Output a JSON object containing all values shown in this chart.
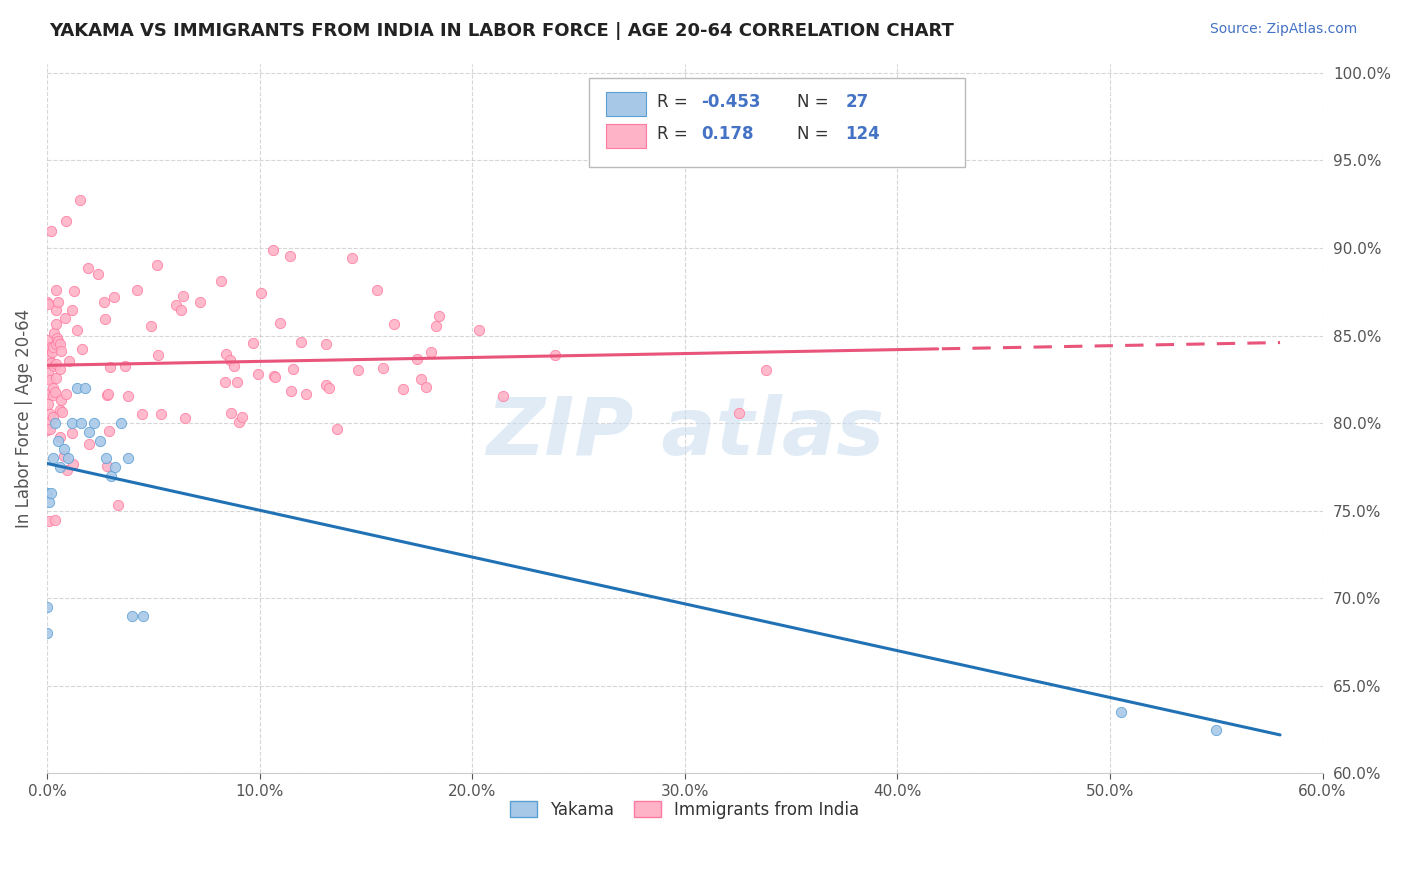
{
  "title": "YAKAMA VS IMMIGRANTS FROM INDIA IN LABOR FORCE | AGE 20-64 CORRELATION CHART",
  "source": "Source: ZipAtlas.com",
  "ylabel": "In Labor Force | Age 20-64",
  "xmin": 0.0,
  "xmax": 0.6,
  "ymin": 0.6,
  "ymax": 1.005,
  "yticks": [
    0.6,
    0.65,
    0.7,
    0.75,
    0.8,
    0.85,
    0.9,
    0.95,
    1.0
  ],
  "ytick_labels": [
    "60.0%",
    "65.0%",
    "70.0%",
    "75.0%",
    "80.0%",
    "85.0%",
    "90.0%",
    "95.0%",
    "100.0%"
  ],
  "xticks": [
    0.0,
    0.1,
    0.2,
    0.3,
    0.4,
    0.5,
    0.6
  ],
  "xtick_labels": [
    "0.0%",
    "10.0%",
    "20.0%",
    "30.0%",
    "40.0%",
    "50.0%",
    "60.0%"
  ],
  "blue_scatter_color": "#a8c8e8",
  "blue_scatter_edge": "#5a9fd4",
  "pink_scatter_color": "#ffb3c6",
  "pink_scatter_edge": "#ff7aa0",
  "blue_line_color": "#2171b5",
  "pink_line_color": "#e8547a",
  "watermark_color": "#c8dcf0",
  "legend_label1": "Yakama",
  "legend_label2": "Immigrants from India",
  "r1_val": "-0.453",
  "n1_val": "27",
  "r2_val": "0.178",
  "n2_val": "124",
  "text_blue": "#4472c4",
  "text_black": "#333333",
  "grid_color": "#cccccc",
  "title_color": "#222222",
  "source_color": "#4472c4",
  "ylabel_color": "#555555",
  "tick_color_x": "#555555",
  "tick_color_y": "#4472c4"
}
